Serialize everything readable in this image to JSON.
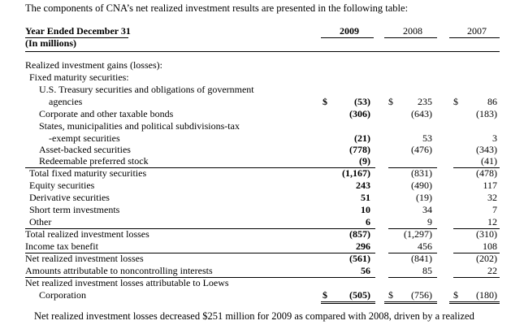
{
  "intro": "The components of CNA’s net realized investment results are presented in the following table:",
  "header": {
    "title": "Year Ended December 31",
    "subtitle": "(In millions)",
    "years": [
      "2009",
      "2008",
      "2007"
    ]
  },
  "rows": [
    {
      "label": "Realized investment gains (losses):"
    },
    {
      "label": "Fixed maturity securities:"
    },
    {
      "label": "U.S. Treasury securities and obligations of government"
    },
    {
      "label": "agencies",
      "d09": "$",
      "v09": "(53)",
      "d08": "$",
      "v08": "235",
      "d07": "$",
      "v07": "86"
    },
    {
      "label": "Corporate and other taxable bonds",
      "v09": "(306)",
      "v08": "(643)",
      "v07": "(183)"
    },
    {
      "label": "States, municipalities and political subdivisions-tax"
    },
    {
      "label": "-exempt securities",
      "v09": "(21)",
      "v08": "53",
      "v07": "3"
    },
    {
      "label": "Asset-backed securities",
      "v09": "(778)",
      "v08": "(476)",
      "v07": "(343)"
    },
    {
      "label": "Redeemable preferred stock",
      "v09": "(9)",
      "v08": "",
      "v07": "(41)"
    },
    {
      "label": "Total fixed maturity securities",
      "v09": "(1,167)",
      "v08": "(831)",
      "v07": "(478)"
    },
    {
      "label": "Equity securities",
      "v09": "243",
      "v08": "(490)",
      "v07": "117"
    },
    {
      "label": "Derivative securities",
      "v09": "51",
      "v08": "(19)",
      "v07": "32"
    },
    {
      "label": "Short term investments",
      "v09": "10",
      "v08": "34",
      "v07": "7"
    },
    {
      "label": "Other",
      "v09": "6",
      "v08": "9",
      "v07": "12"
    },
    {
      "label": "Total realized investment losses",
      "v09": "(857)",
      "v08": "(1,297)",
      "v07": "(310)"
    },
    {
      "label": "Income tax benefit",
      "v09": "296",
      "v08": "456",
      "v07": "108"
    },
    {
      "label": "Net realized investment losses",
      "v09": "(561)",
      "v08": "(841)",
      "v07": "(202)"
    },
    {
      "label": "Amounts attributable to noncontrolling interests",
      "v09": "56",
      "v08": "85",
      "v07": "22"
    },
    {
      "label": "Net realized investment losses attributable to Loews"
    },
    {
      "label": "Corporation",
      "d09": "$",
      "v09": "(505)",
      "d08": "$",
      "v08": "(756)",
      "d07": "$",
      "v07": "(180)"
    }
  ],
  "footer": "Net realized investment losses decreased $251 million for 2009 as compared with 2008, driven by a realized"
}
